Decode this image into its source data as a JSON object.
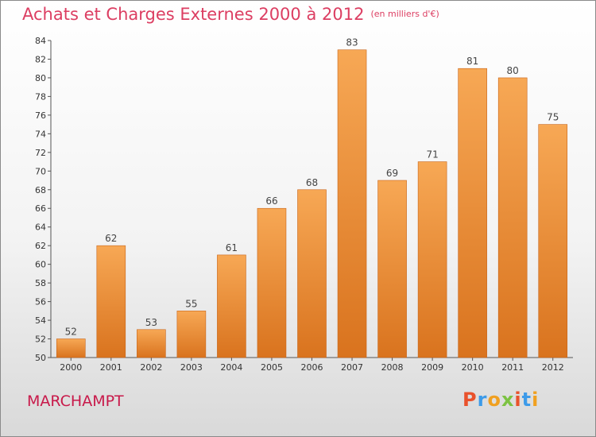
{
  "header": {
    "title": "Achats et Charges Externes 2000 à 2012",
    "unit": "(en milliers d'€)"
  },
  "footer": {
    "town": "MARCHAMPT",
    "brand": "Proxiti",
    "brand_colors": [
      "#e9522c",
      "#3d9be9",
      "#f0a020",
      "#7cc242",
      "#e9522c",
      "#3d9be9",
      "#f0a020"
    ]
  },
  "chart_data": {
    "type": "bar",
    "categories": [
      "2000",
      "2001",
      "2002",
      "2003",
      "2004",
      "2005",
      "2006",
      "2007",
      "2008",
      "2009",
      "2010",
      "2011",
      "2012"
    ],
    "values": [
      52,
      62,
      53,
      55,
      61,
      66,
      68,
      83,
      69,
      71,
      81,
      80,
      75
    ],
    "title": "Achats et Charges Externes 2000 à 2012",
    "subtitle": "(en milliers d'€)",
    "xlabel": "",
    "ylabel": "",
    "ylim": [
      50,
      84
    ],
    "yticks": [
      50,
      52,
      54,
      56,
      58,
      60,
      62,
      64,
      66,
      68,
      70,
      72,
      74,
      76,
      78,
      80,
      82,
      84
    ],
    "grid": false,
    "legend": "none",
    "bar_color": "#f29a45"
  }
}
